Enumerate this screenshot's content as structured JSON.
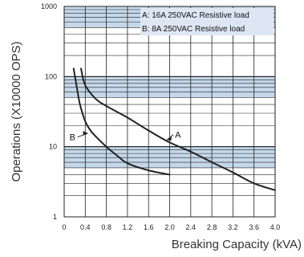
{
  "chart_data": {
    "type": "line",
    "xlabel": "Breaking Capacity (kVA)",
    "ylabel": "Operations (X10000 OPS)",
    "xlim": [
      0,
      4.0
    ],
    "ylim": [
      1,
      1000
    ],
    "y_scale": "log",
    "x_ticks": [
      "0",
      "0.4",
      "0.8",
      "1.2",
      "1.6",
      "2.0",
      "2.4",
      "2.8",
      "3.2",
      "3.6",
      "4.0"
    ],
    "y_ticks": [
      "1",
      "10",
      "100",
      "1000"
    ],
    "grid": true,
    "legend_position": "top-right",
    "legend": [
      "A: 16A 250VAC Resistive load",
      "B: 8A 250VAC Resistive load"
    ],
    "series": [
      {
        "name": "A",
        "color": "#222222",
        "x": [
          0.32,
          0.4,
          0.6,
          0.8,
          1.2,
          1.6,
          2.0,
          2.4,
          2.8,
          3.2,
          3.6,
          4.0
        ],
        "y": [
          130,
          75,
          48,
          38,
          26,
          17,
          11.5,
          8.5,
          6.0,
          4.3,
          3.0,
          2.4
        ]
      },
      {
        "name": "B",
        "color": "#222222",
        "x": [
          0.18,
          0.24,
          0.3,
          0.4,
          0.5,
          0.6,
          0.8,
          1.0,
          1.2,
          1.6,
          2.0
        ],
        "y": [
          130,
          70,
          40,
          23,
          17,
          14,
          10,
          7.5,
          5.8,
          4.6,
          4.0
        ]
      }
    ],
    "annotations": [
      {
        "text": "A",
        "x": 2.05,
        "y": 14
      },
      {
        "text": "B",
        "x": 0.28,
        "y": 13
      }
    ],
    "colors": {
      "band": "#c5d8ea",
      "grid": "#222222",
      "line": "#222222"
    }
  }
}
